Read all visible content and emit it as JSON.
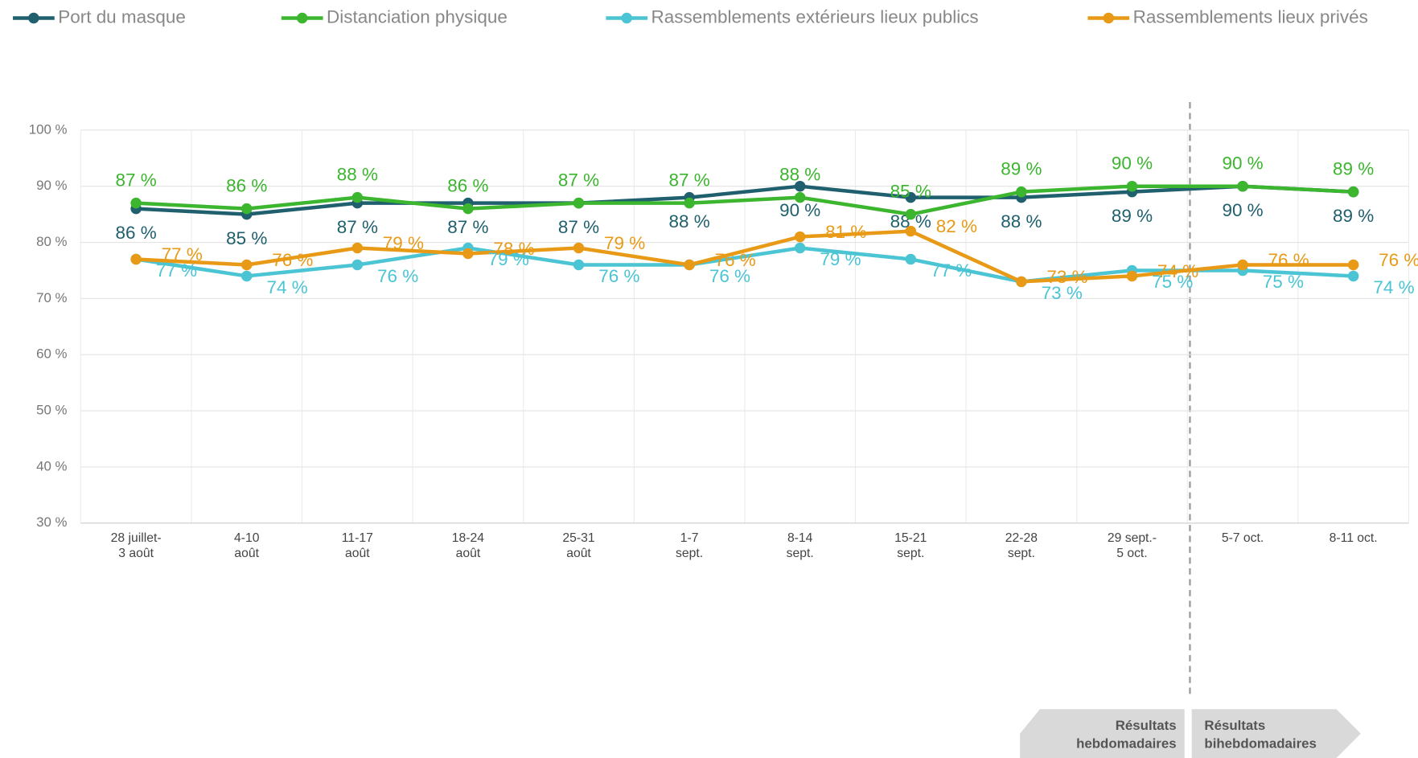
{
  "chart_data": {
    "type": "line",
    "categories": [
      [
        "28 juillet-",
        "3 août"
      ],
      [
        "4-10",
        "août"
      ],
      [
        "11-17",
        "août"
      ],
      [
        "18-24",
        "août"
      ],
      [
        "25-31",
        "août"
      ],
      [
        "1-7",
        "sept."
      ],
      [
        "8-14",
        "sept."
      ],
      [
        "15-21",
        "sept."
      ],
      [
        "22-28",
        "sept."
      ],
      [
        "29 sept.-",
        "5 oct."
      ],
      [
        "5-7 oct."
      ],
      [
        "8-11 oct."
      ]
    ],
    "series": [
      {
        "name": "Port du masque",
        "color": "#1f5f6e",
        "values": [
          86,
          85,
          87,
          87,
          87,
          88,
          90,
          88,
          88,
          89,
          90,
          89
        ],
        "value_labels": [
          "86 %",
          "85 %",
          "87 %",
          "87 %",
          "87 %",
          "88 %",
          "90 %",
          "88 %",
          "88 %",
          "89 %",
          "90 %",
          "89 %"
        ]
      },
      {
        "name": "Distanciation physique",
        "color": "#3cb52f",
        "values": [
          87,
          86,
          88,
          86,
          87,
          87,
          88,
          85,
          89,
          90,
          90,
          89
        ],
        "value_labels": [
          "87 %",
          "86 %",
          "88 %",
          "86 %",
          "87 %",
          "87 %",
          "88 %",
          "85 %",
          "89 %",
          "90 %",
          "90 %",
          "89 %"
        ]
      },
      {
        "name": "Rassemblements extérieurs lieux publics",
        "color": "#4bc4d4",
        "values": [
          77,
          74,
          76,
          79,
          76,
          76,
          79,
          77,
          73,
          75,
          75,
          74
        ],
        "value_labels": [
          "77 %",
          "74 %",
          "76 %",
          "79 %",
          "76 %",
          "76 %",
          "79 %",
          "77 %",
          "73 %",
          "75 %",
          "75 %",
          "74 %"
        ]
      },
      {
        "name": "Rassemblements lieux privés",
        "color": "#e89a17",
        "values": [
          77,
          76,
          79,
          78,
          79,
          76,
          81,
          82,
          73,
          74,
          76,
          76
        ],
        "value_labels": [
          "77 %",
          "76 %",
          "79 %",
          "78 %",
          "79 %",
          "76 %",
          "81 %",
          "82 %",
          "73 %",
          "74 %",
          "76 %",
          "76 %"
        ]
      }
    ],
    "ylim": [
      30,
      100
    ],
    "yticks": [
      {
        "value": 30,
        "label": "30 %"
      },
      {
        "value": 40,
        "label": "40 %"
      },
      {
        "value": 50,
        "label": "50 %"
      },
      {
        "value": 60,
        "label": "60 %"
      },
      {
        "value": 70,
        "label": "70 %"
      },
      {
        "value": 80,
        "label": "80 %"
      },
      {
        "value": 90,
        "label": "90 %"
      },
      {
        "value": 100,
        "label": "100 %"
      }
    ],
    "grid": true,
    "annotations": [
      [
        "Résultats",
        "hebdomadaires"
      ],
      [
        "Résultats",
        "bihebdomadaires"
      ]
    ]
  }
}
